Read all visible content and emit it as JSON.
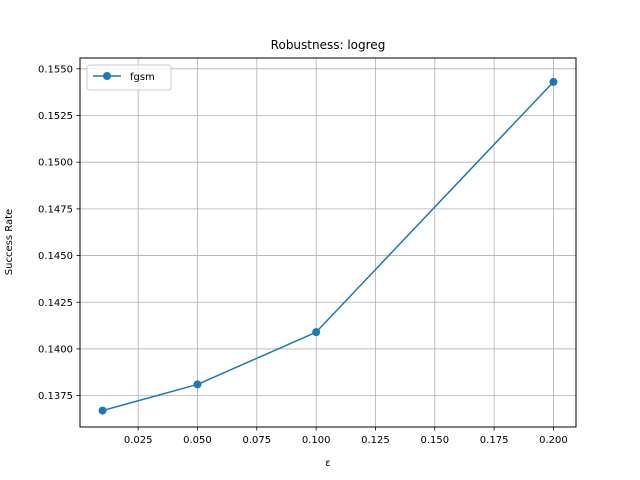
{
  "chart_data": {
    "type": "line",
    "title": "Robustness: logreg",
    "xlabel": "ε",
    "ylabel": "Success Rate",
    "x": [
      0.01,
      0.05,
      0.1,
      0.2
    ],
    "series": [
      {
        "name": "fgsm",
        "values": [
          0.1367,
          0.1381,
          0.1409,
          0.1543
        ],
        "color": "#1f77b4",
        "marker": "circle"
      }
    ],
    "xlim": [
      0.0005,
      0.2095
    ],
    "ylim": [
      0.13582,
      0.15558
    ],
    "xticks": [
      0.025,
      0.05,
      0.075,
      0.1,
      0.125,
      0.15,
      0.175,
      0.2
    ],
    "xtick_labels": [
      "0.025",
      "0.050",
      "0.075",
      "0.100",
      "0.125",
      "0.150",
      "0.175",
      "0.200"
    ],
    "yticks": [
      0.1375,
      0.14,
      0.1425,
      0.145,
      0.1475,
      0.15,
      0.1525,
      0.155
    ],
    "ytick_labels": [
      "0.1375",
      "0.1400",
      "0.1425",
      "0.1450",
      "0.1475",
      "0.1500",
      "0.1525",
      "0.1550"
    ],
    "grid": true,
    "legend_position": "top-left"
  }
}
